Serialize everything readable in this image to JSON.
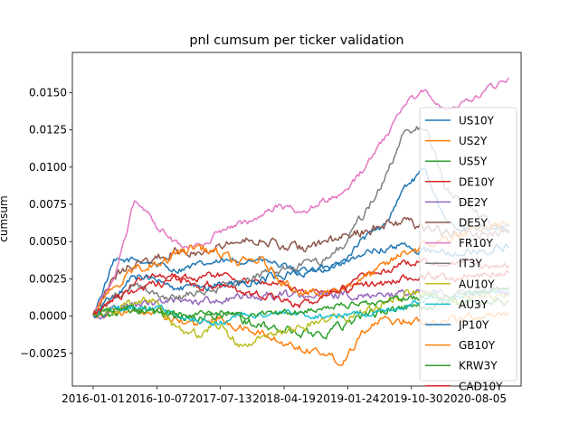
{
  "chart_data": {
    "type": "line",
    "title": "pnl cumsum per ticker validation",
    "xlabel": "",
    "ylabel": "cumsum",
    "x_tick_labels": [
      "2016-01-01",
      "2016-10-07",
      "2017-07-13",
      "2018-04-19",
      "2019-01-24",
      "2019-10-30",
      "2020-08-05"
    ],
    "y_ticks": [
      -0.0025,
      0.0,
      0.0025,
      0.005,
      0.0075,
      0.01,
      0.0125,
      0.015
    ],
    "y_tick_labels": [
      "−0.0025",
      "0.0000",
      "0.0025",
      "0.0050",
      "0.0075",
      "0.0100",
      "0.0125",
      "0.0150"
    ],
    "ylim": [
      -0.0047,
      0.0177
    ],
    "grid": false,
    "legend_position": "right",
    "dates": [
      "2016-01-01",
      "2016-04-01",
      "2016-07-01",
      "2016-10-01",
      "2017-01-01",
      "2017-04-01",
      "2017-07-01",
      "2017-10-01",
      "2018-01-01",
      "2018-04-01",
      "2018-07-01",
      "2018-10-01",
      "2019-01-01",
      "2019-04-01",
      "2019-07-01",
      "2019-10-01",
      "2020-01-01",
      "2020-04-01",
      "2020-07-01",
      "2020-10-01",
      "2021-01-01"
    ],
    "series": [
      {
        "name": "US10Y",
        "color": "#1f77b4",
        "values": [
          0.0001,
          0.0036,
          0.0038,
          0.0035,
          0.0031,
          0.0034,
          0.0036,
          0.0037,
          0.0038,
          0.0034,
          0.0028,
          0.0031,
          0.0036,
          0.0052,
          0.006,
          0.0087,
          0.0098,
          0.0062,
          0.0058,
          0.0059,
          0.006
        ]
      },
      {
        "name": "US2Y",
        "color": "#ff7f0e",
        "values": [
          0.0001,
          0.0003,
          0.0002,
          0.0001,
          -0.0003,
          -0.0006,
          -0.0001,
          -0.0008,
          -0.0011,
          -0.0018,
          -0.0021,
          -0.0024,
          -0.0031,
          -0.0009,
          -0.0003,
          -0.0003,
          -0.0004,
          -0.0002,
          -0.0001,
          0.0001,
          0.0002
        ]
      },
      {
        "name": "US5Y",
        "color": "#2ca02c",
        "values": [
          0.0001,
          0.0002,
          0.0004,
          0.0003,
          0.0001,
          -0.0001,
          0.0002,
          -0.0001,
          -0.0007,
          -0.0009,
          -0.0011,
          -0.0012,
          -0.0006,
          0.0001,
          0.0003,
          0.0006,
          0.0006,
          0.0009,
          0.0009,
          0.001,
          0.001
        ]
      },
      {
        "name": "DE10Y",
        "color": "#d62728",
        "values": [
          0.0001,
          0.0012,
          0.0023,
          0.0028,
          0.0027,
          0.0026,
          0.0028,
          0.0025,
          0.0022,
          0.0023,
          0.0016,
          0.0017,
          0.0018,
          0.0027,
          0.003,
          0.0035,
          0.0038,
          0.0035,
          0.0037,
          0.0033,
          0.0034
        ]
      },
      {
        "name": "DE2Y",
        "color": "#9467bd",
        "values": [
          0.0001,
          0.0004,
          0.0007,
          0.0009,
          0.001,
          0.001,
          0.0011,
          0.0012,
          0.0013,
          0.0014,
          0.0014,
          0.0014,
          0.0014,
          0.0015,
          0.0015,
          0.0015,
          0.0015,
          0.0015,
          0.0015,
          0.0016,
          0.0016
        ]
      },
      {
        "name": "DE5Y",
        "color": "#8c564b",
        "values": [
          0.0001,
          0.0027,
          0.0035,
          0.0038,
          0.0044,
          0.0044,
          0.0048,
          0.005,
          0.0052,
          0.0047,
          0.0045,
          0.0049,
          0.0052,
          0.0057,
          0.0061,
          0.0064,
          0.006,
          0.0056,
          0.0055,
          0.0056,
          0.0058
        ]
      },
      {
        "name": "FR10Y",
        "color": "#e377c2",
        "values": [
          0.0001,
          0.0024,
          0.0078,
          0.0062,
          0.0049,
          0.0046,
          0.0056,
          0.0061,
          0.0066,
          0.0074,
          0.0069,
          0.0076,
          0.0082,
          0.0098,
          0.0118,
          0.0142,
          0.0152,
          0.0138,
          0.0145,
          0.0152,
          0.016
        ]
      },
      {
        "name": "IT3Y",
        "color": "#7f7f7f",
        "values": [
          0.0001,
          0.0013,
          0.0021,
          0.0014,
          0.0012,
          0.0016,
          0.0019,
          0.0022,
          0.0028,
          0.0031,
          0.0034,
          0.0036,
          0.0048,
          0.0068,
          0.0089,
          0.0125,
          0.0128,
          0.0085,
          0.0074,
          0.0063,
          0.0058
        ]
      },
      {
        "name": "AU10Y",
        "color": "#bcbd22",
        "values": [
          0.0001,
          0.0005,
          0.0011,
          0.0009,
          -0.0009,
          -0.0012,
          -0.0006,
          -0.0018,
          -0.0016,
          -0.0012,
          -0.0008,
          -0.0005,
          -0.0002,
          0.0003,
          0.0008,
          0.0016,
          0.0014,
          0.0011,
          0.0012,
          0.0013,
          0.0014
        ]
      },
      {
        "name": "AU3Y",
        "color": "#17becf",
        "values": [
          0.0001,
          0.0005,
          0.0006,
          0.0006,
          0.0001,
          -0.0002,
          -0.0006,
          0.0001,
          0.0001,
          0.0002,
          0.0001,
          0.0,
          0.0001,
          0.0002,
          0.0003,
          0.0007,
          0.0012,
          0.0013,
          0.0015,
          0.0016,
          0.0017
        ]
      },
      {
        "name": "JP10Y",
        "color": "#1f77b4",
        "values": [
          0.0001,
          0.0014,
          0.0026,
          0.0024,
          0.0019,
          0.0018,
          0.0021,
          0.0021,
          0.0024,
          0.0028,
          0.0029,
          0.0032,
          0.0037,
          0.0043,
          0.0045,
          0.0047,
          0.0044,
          0.0043,
          0.0043,
          0.0045,
          0.0046
        ]
      },
      {
        "name": "GB10Y",
        "color": "#ff7f0e",
        "values": [
          0.0001,
          0.0018,
          0.0032,
          0.0036,
          0.0042,
          0.0047,
          0.0042,
          0.0035,
          0.0038,
          0.0025,
          0.0017,
          0.0014,
          0.002,
          0.0025,
          0.0033,
          0.0043,
          0.0047,
          0.0052,
          0.0055,
          0.006,
          0.0062
        ]
      },
      {
        "name": "KRW3Y",
        "color": "#2ca02c",
        "values": [
          0.0001,
          0.0005,
          0.0004,
          0.0003,
          0.0002,
          0.0001,
          0.0002,
          0.0001,
          0.0,
          0.0002,
          0.0004,
          0.0006,
          0.0008,
          0.0008,
          0.0009,
          0.0012,
          0.0013,
          0.0014,
          0.0016,
          0.0018,
          0.0018
        ]
      },
      {
        "name": "CAD10Y",
        "color": "#d62728",
        "values": [
          0.0001,
          0.0009,
          0.0017,
          0.0021,
          0.0024,
          0.0022,
          0.002,
          0.0016,
          0.0014,
          0.0011,
          0.0007,
          0.0013,
          0.0018,
          0.0021,
          0.0022,
          0.0024,
          0.0026,
          0.0026,
          0.0026,
          0.0028,
          0.0029
        ]
      }
    ]
  }
}
